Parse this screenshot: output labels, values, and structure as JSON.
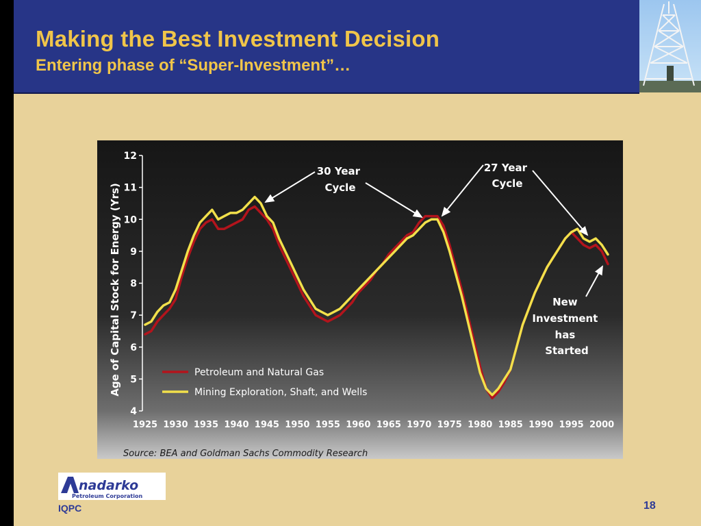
{
  "slide": {
    "title": "Making the Best Investment Decision",
    "subtitle": "Entering phase of “Super-Investment”…",
    "footer_left": "IQPC",
    "page_number": "18",
    "logo_text": "Anadarko",
    "logo_subtext": "Petroleum Corporation"
  },
  "chart_data": {
    "type": "line",
    "ylabel": "Age of Capital Stock for Energy (Yrs)",
    "xlabel": "",
    "ylim": [
      4,
      12
    ],
    "xlim": [
      1925,
      2001
    ],
    "yticks": [
      4,
      5,
      6,
      7,
      8,
      9,
      10,
      11,
      12
    ],
    "xticks": [
      1925,
      1930,
      1935,
      1940,
      1945,
      1950,
      1955,
      1960,
      1965,
      1970,
      1975,
      1980,
      1985,
      1990,
      1995,
      2000
    ],
    "source": "Source: BEA and Goldman Sachs Commodity Research",
    "legend_position": "bottom-left",
    "series": [
      {
        "name": "Petroleum and Natural Gas",
        "color": "#b3141c",
        "x": [
          1925,
          1926,
          1927,
          1928,
          1929,
          1930,
          1931,
          1932,
          1933,
          1934,
          1935,
          1936,
          1937,
          1938,
          1939,
          1940,
          1941,
          1942,
          1943,
          1944,
          1945,
          1946,
          1947,
          1948,
          1949,
          1950,
          1951,
          1952,
          1953,
          1954,
          1955,
          1956,
          1957,
          1958,
          1959,
          1960,
          1961,
          1962,
          1963,
          1964,
          1965,
          1966,
          1967,
          1968,
          1969,
          1970,
          1971,
          1972,
          1973,
          1974,
          1975,
          1976,
          1977,
          1978,
          1979,
          1980,
          1981,
          1982,
          1983,
          1984,
          1985,
          1986,
          1987,
          1988,
          1989,
          1990,
          1991,
          1992,
          1993,
          1994,
          1995,
          1996,
          1997,
          1998,
          1999,
          2000,
          2001
        ],
        "values": [
          6.4,
          6.5,
          6.8,
          7.0,
          7.2,
          7.5,
          8.2,
          8.8,
          9.3,
          9.7,
          9.9,
          10.0,
          9.7,
          9.7,
          9.8,
          9.9,
          10.0,
          10.3,
          10.4,
          10.2,
          10.0,
          9.7,
          9.2,
          8.8,
          8.4,
          8.0,
          7.6,
          7.3,
          7.0,
          6.9,
          6.8,
          6.9,
          7.0,
          7.2,
          7.4,
          7.7,
          7.9,
          8.1,
          8.4,
          8.6,
          8.9,
          9.1,
          9.3,
          9.5,
          9.6,
          9.9,
          10.1,
          10.1,
          10.1,
          9.8,
          9.2,
          8.5,
          7.8,
          7.0,
          6.2,
          5.4,
          4.7,
          4.4,
          4.6,
          4.9,
          5.3,
          6.0,
          6.7,
          7.2,
          7.7,
          8.1,
          8.5,
          8.8,
          9.1,
          9.4,
          9.6,
          9.4,
          9.2,
          9.1,
          9.2,
          9.0,
          8.6
        ]
      },
      {
        "name": "Mining Exploration, Shaft, and Wells",
        "color": "#f2e04b",
        "x": [
          1925,
          1926,
          1927,
          1928,
          1929,
          1930,
          1931,
          1932,
          1933,
          1934,
          1935,
          1936,
          1937,
          1938,
          1939,
          1940,
          1941,
          1942,
          1943,
          1944,
          1945,
          1946,
          1947,
          1948,
          1949,
          1950,
          1951,
          1952,
          1953,
          1954,
          1955,
          1956,
          1957,
          1958,
          1959,
          1960,
          1961,
          1962,
          1963,
          1964,
          1965,
          1966,
          1967,
          1968,
          1969,
          1970,
          1971,
          1972,
          1973,
          1974,
          1975,
          1976,
          1977,
          1978,
          1979,
          1980,
          1981,
          1982,
          1983,
          1984,
          1985,
          1986,
          1987,
          1988,
          1989,
          1990,
          1991,
          1992,
          1993,
          1994,
          1995,
          1996,
          1997,
          1998,
          1999,
          2000,
          2001
        ],
        "values": [
          6.7,
          6.8,
          7.1,
          7.3,
          7.4,
          7.8,
          8.4,
          9.0,
          9.5,
          9.9,
          10.1,
          10.3,
          10.0,
          10.1,
          10.2,
          10.2,
          10.3,
          10.5,
          10.7,
          10.5,
          10.1,
          9.9,
          9.4,
          9.0,
          8.6,
          8.2,
          7.8,
          7.5,
          7.2,
          7.1,
          7.0,
          7.1,
          7.2,
          7.4,
          7.6,
          7.8,
          8.0,
          8.2,
          8.4,
          8.6,
          8.8,
          9.0,
          9.2,
          9.4,
          9.5,
          9.7,
          9.9,
          10.0,
          10.0,
          9.6,
          9.0,
          8.3,
          7.6,
          6.8,
          6.0,
          5.2,
          4.7,
          4.5,
          4.7,
          5.0,
          5.3,
          6.0,
          6.7,
          7.2,
          7.7,
          8.1,
          8.5,
          8.8,
          9.1,
          9.4,
          9.6,
          9.7,
          9.4,
          9.3,
          9.4,
          9.2,
          8.9
        ]
      }
    ],
    "annotations": [
      {
        "text": [
          "30 Year",
          "Cycle"
        ]
      },
      {
        "text": [
          "27 Year",
          "Cycle"
        ]
      },
      {
        "text": [
          "New",
          "Investment",
          "has",
          "Started"
        ]
      }
    ]
  }
}
